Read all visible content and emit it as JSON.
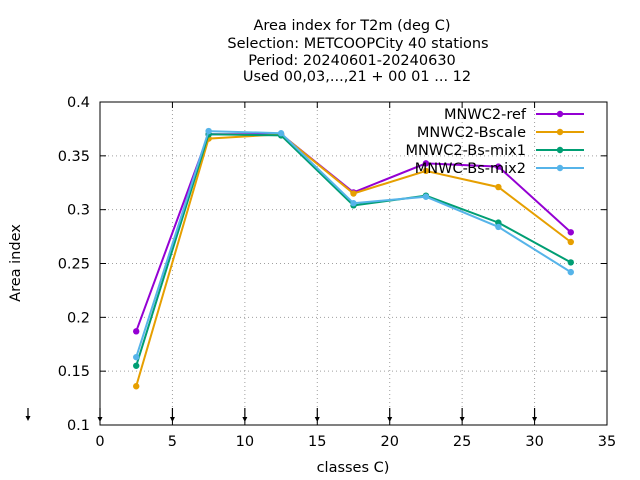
{
  "chart_data": {
    "type": "line",
    "title_lines": [
      "Area index  for T2m (deg C)",
      "Selection: METCOOPCity     40 stations",
      "Period: 20240601-20240630",
      "Used 00,03,...,21 + 00 01 ... 12"
    ],
    "xlabel": "classes C)",
    "ylabel": "Area index",
    "xlim": [
      0,
      35
    ],
    "ylim": [
      0.1,
      0.4
    ],
    "xticks": [
      "0",
      "5",
      "10",
      "15",
      "20",
      "25",
      "30",
      "35"
    ],
    "yticks": [
      "0.1",
      "0.15",
      "0.2",
      "0.25",
      "0.3",
      "0.35",
      "0.4"
    ],
    "grid": true,
    "legend_position": "top-right",
    "x": [
      2.5,
      7.5,
      12.5,
      17.5,
      22.5,
      27.5,
      32.5
    ],
    "series": [
      {
        "name": "MNWC2-ref",
        "color": "#9400d3",
        "values": [
          0.187,
          0.37,
          0.37,
          0.316,
          0.343,
          0.34,
          0.279
        ]
      },
      {
        "name": "MNWC2-Bscale",
        "color": "#e69f00",
        "values": [
          0.136,
          0.366,
          0.37,
          0.315,
          0.336,
          0.321,
          0.27
        ]
      },
      {
        "name": "MNWC2-Bs-mix1",
        "color": "#009e73",
        "values": [
          0.155,
          0.37,
          0.369,
          0.304,
          0.313,
          0.288,
          0.251
        ]
      },
      {
        "name": "MNWC-Bs-mix2",
        "color": "#56b4e9",
        "values": [
          0.163,
          0.373,
          0.371,
          0.306,
          0.312,
          0.284,
          0.242
        ]
      }
    ],
    "bottom_arrows_x": [
      0,
      5,
      10,
      15,
      20,
      25,
      30
    ]
  }
}
